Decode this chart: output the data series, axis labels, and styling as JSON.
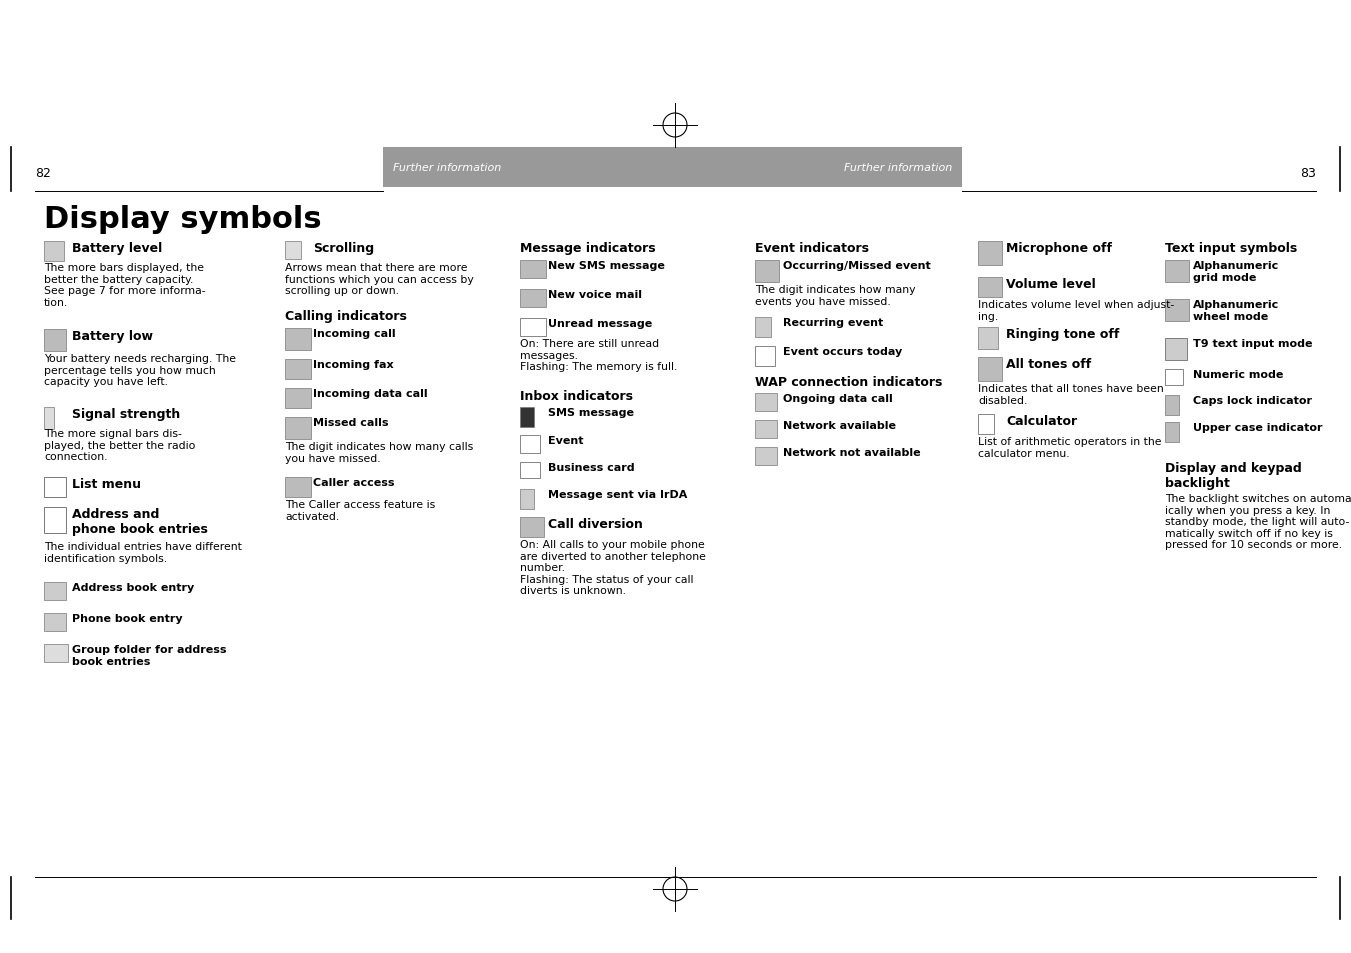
{
  "bg_color": "#ffffff",
  "page_width": 13.51,
  "page_height": 9.54,
  "dpi": 100,
  "header_bar_color": "#999999",
  "header_text_color": "#ffffff",
  "page_num_left": "82",
  "page_num_right": "83",
  "title": "Display symbols"
}
